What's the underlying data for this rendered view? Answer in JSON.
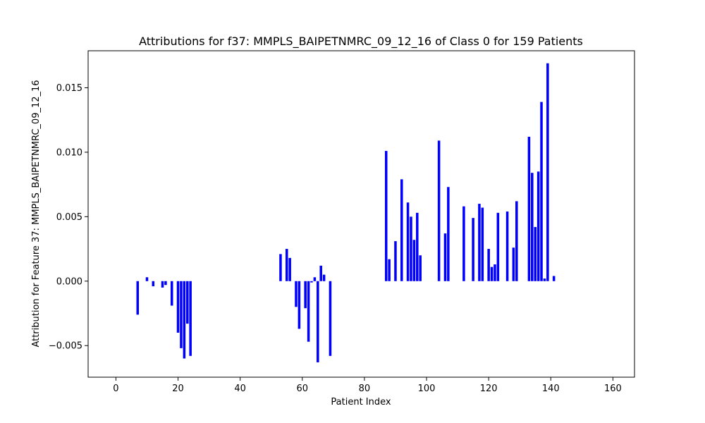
{
  "chart_data": {
    "type": "bar",
    "title": "Attributions for f37: MMPLS_BAIPETNMRC_09_12_16 of Class 0 for 159 Patients",
    "xlabel": "Patient Index",
    "ylabel": "Attribution for Feature 37: MMPLS_BAIPETNMRC_09_12_16",
    "xlim": [
      -8.95,
      166.95
    ],
    "ylim": [
      -0.00745,
      0.01787
    ],
    "xticks": [
      0,
      20,
      40,
      60,
      80,
      100,
      120,
      140,
      160
    ],
    "xtick_labels": [
      "0",
      "20",
      "40",
      "60",
      "80",
      "100",
      "120",
      "140",
      "160"
    ],
    "yticks": [
      -0.005,
      0.0,
      0.005,
      0.01,
      0.015
    ],
    "ytick_labels": [
      "−0.005",
      "0.000",
      "0.005",
      "0.010",
      "0.015"
    ],
    "grid": false,
    "bar_color": "#0000ff",
    "bar_width": 0.8,
    "x": [
      7,
      10,
      12,
      15,
      16,
      18,
      20,
      21,
      22,
      23,
      24,
      53,
      55,
      56,
      58,
      59,
      61,
      62,
      63,
      64,
      65,
      66,
      67,
      69,
      87,
      88,
      90,
      92,
      94,
      95,
      96,
      97,
      98,
      104,
      106,
      107,
      112,
      115,
      117,
      118,
      120,
      121,
      122,
      123,
      126,
      128,
      129,
      133,
      134,
      135,
      136,
      137,
      138,
      139,
      141
    ],
    "values": [
      -0.0026,
      0.0003,
      -0.0004,
      -0.0005,
      -0.0003,
      -0.0019,
      -0.004,
      -0.0052,
      -0.006,
      -0.0033,
      -0.0058,
      0.0021,
      0.0025,
      0.0018,
      -0.002,
      -0.0037,
      -0.0021,
      -0.0047,
      -0.0001,
      0.0003,
      -0.0063,
      0.0012,
      0.0005,
      -0.0058,
      0.0101,
      0.0017,
      0.0031,
      0.0079,
      0.0061,
      0.005,
      0.0032,
      0.0053,
      0.002,
      0.0109,
      0.0037,
      0.0073,
      0.0058,
      0.0049,
      0.006,
      0.0057,
      0.0025,
      0.0011,
      0.0013,
      0.0053,
      0.0054,
      0.0026,
      0.0062,
      0.0112,
      0.0084,
      0.0042,
      0.0085,
      0.0139,
      0.0002,
      0.0169,
      0.0004
    ]
  }
}
